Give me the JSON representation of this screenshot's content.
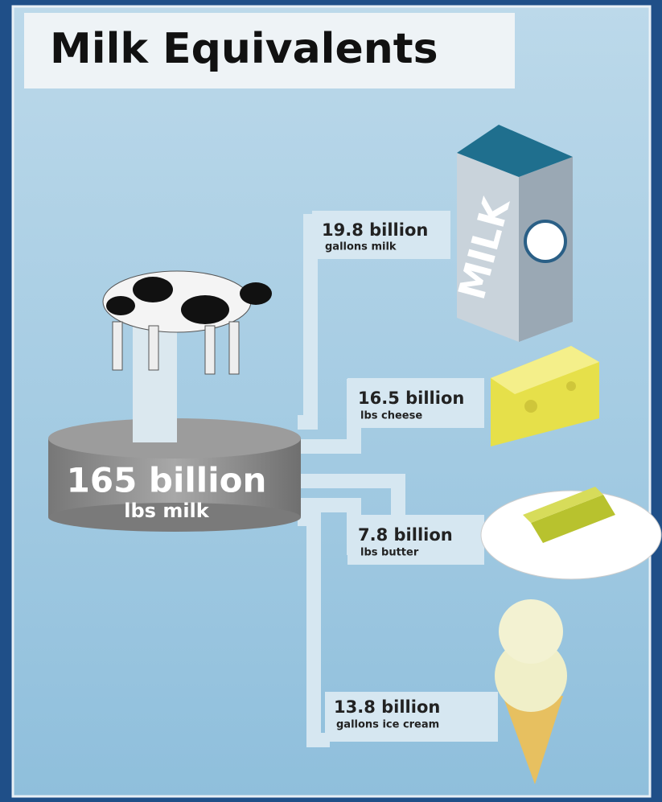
{
  "title": "Milk Equivalents",
  "source": {
    "amount": "165 billion",
    "unit": "lbs milk"
  },
  "products": [
    {
      "amount": "19.8 billion",
      "unit": "gallons milk"
    },
    {
      "amount": "16.5 billion",
      "unit": "lbs cheese"
    },
    {
      "amount": "7.8 billion",
      "unit": "lbs butter"
    },
    {
      "amount": "13.8 billion",
      "unit": "gallons ice cream"
    }
  ]
}
